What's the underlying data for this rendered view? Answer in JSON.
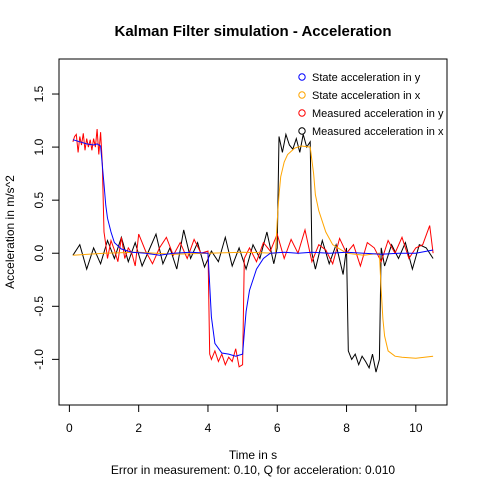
{
  "chart_data": {
    "type": "line",
    "title": "Kalman Filter simulation - Acceleration",
    "xlabel": "Time in s",
    "subtitle": "Error in measurement: 0.10, Q for acceleration: 0.010",
    "ylabel": "Acceleration in m/s^2",
    "xlim": [
      -0.3,
      10.9
    ],
    "ylim": [
      -1.43,
      1.83
    ],
    "x_ticks": [
      0,
      2,
      4,
      6,
      8,
      10
    ],
    "y_ticks": [
      -1.0,
      -0.5,
      0.0,
      0.5,
      1.0,
      1.5
    ],
    "y_tick_labels": [
      "-1.0",
      "-0.5",
      "0.0",
      "0.5",
      "1.0",
      "1.5"
    ],
    "legend_position": "top-right",
    "grid": false,
    "series": [
      {
        "name": "State acceleration in y",
        "color": "#0000ff",
        "x": [
          0.1,
          0.3,
          0.5,
          0.7,
          0.8,
          0.9,
          1.0,
          1.05,
          1.1,
          1.2,
          1.3,
          1.5,
          1.8,
          2.2,
          2.6,
          3.0,
          3.5,
          4.0,
          4.05,
          4.1,
          4.2,
          4.4,
          4.6,
          4.8,
          5.0,
          5.05,
          5.1,
          5.2,
          5.4,
          5.6,
          5.8,
          6.2,
          6.6,
          7.0,
          7.5,
          8.0,
          8.5,
          9.0,
          9.5,
          10.0,
          10.5
        ],
        "values": [
          1.07,
          1.05,
          1.03,
          1.02,
          1.03,
          1.01,
          0.65,
          0.45,
          0.33,
          0.2,
          0.1,
          0.04,
          0.01,
          0.0,
          -0.02,
          0.0,
          0.01,
          0.0,
          -0.3,
          -0.6,
          -0.85,
          -0.94,
          -0.95,
          -0.97,
          -0.95,
          -0.75,
          -0.55,
          -0.35,
          -0.15,
          -0.05,
          0.0,
          0.01,
          0.0,
          0.01,
          0.0,
          0.01,
          0.0,
          -0.01,
          0.0,
          0.0,
          0.03
        ]
      },
      {
        "name": "State acceleration in x",
        "color": "#ffa500",
        "x": [
          0.1,
          1.0,
          2.0,
          3.0,
          4.0,
          5.0,
          5.95,
          6.0,
          6.05,
          6.1,
          6.2,
          6.3,
          6.5,
          6.7,
          6.95,
          7.05,
          7.1,
          7.2,
          7.4,
          7.6,
          8.0,
          8.5,
          8.95,
          9.0,
          9.05,
          9.1,
          9.2,
          9.4,
          9.6,
          10.0,
          10.5
        ],
        "values": [
          -0.02,
          0.0,
          0.01,
          -0.01,
          0.0,
          0.01,
          0.0,
          0.3,
          0.55,
          0.72,
          0.86,
          0.93,
          0.99,
          1.01,
          1.0,
          0.75,
          0.55,
          0.4,
          0.2,
          0.08,
          0.0,
          -0.02,
          0.0,
          -0.35,
          -0.62,
          -0.78,
          -0.92,
          -0.97,
          -0.98,
          -0.99,
          -0.97
        ]
      },
      {
        "name": "Measured acceleration in y",
        "color": "#ff0000",
        "x": [
          0.1,
          0.15,
          0.2,
          0.25,
          0.3,
          0.35,
          0.4,
          0.45,
          0.5,
          0.55,
          0.6,
          0.65,
          0.7,
          0.75,
          0.8,
          0.85,
          0.9,
          0.95,
          1.0,
          1.05,
          1.1,
          1.2,
          1.3,
          1.4,
          1.5,
          1.6,
          1.7,
          1.8,
          1.9,
          2.0,
          2.2,
          2.4,
          2.6,
          2.8,
          3.0,
          3.2,
          3.4,
          3.6,
          3.8,
          4.0,
          4.05,
          4.1,
          4.2,
          4.3,
          4.4,
          4.5,
          4.6,
          4.7,
          4.8,
          4.9,
          5.0,
          5.05,
          5.2,
          5.4,
          5.6,
          5.8,
          6.0,
          6.2,
          6.4,
          6.6,
          6.8,
          7.0,
          7.2,
          7.4,
          7.6,
          7.8,
          8.0,
          8.2,
          8.4,
          8.6,
          8.8,
          9.0,
          9.2,
          9.4,
          9.6,
          9.8,
          10.0,
          10.2,
          10.4,
          10.5
        ],
        "values": [
          1.05,
          1.1,
          1.12,
          0.95,
          1.1,
          1.02,
          1.13,
          0.97,
          1.08,
          1.0,
          1.07,
          0.97,
          1.08,
          1.0,
          1.17,
          0.93,
          1.14,
          0.85,
          0.2,
          0.08,
          -0.05,
          0.12,
          0.03,
          -0.08,
          0.15,
          -0.05,
          0.05,
          0.0,
          -0.12,
          0.18,
          0.02,
          -0.1,
          0.05,
          0.15,
          -0.02,
          0.1,
          -0.05,
          0.13,
          0.0,
          0.02,
          -0.95,
          -1.0,
          -0.92,
          -1.02,
          -0.95,
          -1.05,
          -0.98,
          -1.02,
          -0.9,
          -1.07,
          -1.05,
          -0.05,
          0.05,
          -0.08,
          0.1,
          0.02,
          0.18,
          -0.05,
          0.13,
          0.0,
          0.22,
          -0.08,
          0.08,
          0.03,
          -0.1,
          0.14,
          0.0,
          0.08,
          -0.12,
          0.1,
          0.05,
          -0.08,
          0.12,
          0.0,
          0.15,
          -0.05,
          0.05,
          0.08,
          0.26,
          0.0
        ]
      },
      {
        "name": "Measured acceleration in x",
        "color": "#000000",
        "x": [
          0.1,
          0.3,
          0.5,
          0.7,
          0.9,
          1.1,
          1.3,
          1.5,
          1.7,
          1.9,
          2.1,
          2.3,
          2.5,
          2.7,
          2.9,
          3.1,
          3.3,
          3.5,
          3.7,
          3.9,
          4.1,
          4.3,
          4.5,
          4.7,
          4.9,
          5.1,
          5.3,
          5.5,
          5.7,
          5.9,
          6.0,
          6.05,
          6.15,
          6.25,
          6.35,
          6.45,
          6.55,
          6.65,
          6.75,
          6.85,
          6.95,
          7.0,
          7.1,
          7.3,
          7.5,
          7.7,
          7.9,
          8.0,
          8.05,
          8.15,
          8.25,
          8.35,
          8.45,
          8.55,
          8.65,
          8.75,
          8.85,
          8.95,
          9.0,
          9.1,
          9.3,
          9.5,
          9.7,
          9.9,
          10.1,
          10.3,
          10.5
        ],
        "values": [
          -0.02,
          0.08,
          -0.15,
          0.05,
          -0.1,
          0.12,
          -0.05,
          0.15,
          -0.08,
          0.1,
          -0.12,
          0.03,
          0.18,
          -0.1,
          0.05,
          -0.15,
          0.22,
          -0.05,
          0.1,
          -0.13,
          0.02,
          -0.08,
          0.15,
          -0.12,
          0.05,
          -0.15,
          0.08,
          -0.05,
          0.2,
          -0.1,
          0.05,
          1.1,
          0.95,
          1.12,
          1.02,
          0.98,
          1.08,
          0.95,
          1.12,
          1.0,
          1.05,
          0.0,
          -0.15,
          0.12,
          -0.1,
          0.08,
          -0.2,
          0.05,
          -0.92,
          -1.0,
          -0.95,
          -1.05,
          -0.97,
          -1.02,
          -1.08,
          -0.95,
          -1.12,
          -1.0,
          0.05,
          -0.12,
          0.08,
          -0.05,
          0.1,
          -0.15,
          0.08,
          0.05,
          -0.05
        ]
      }
    ]
  }
}
